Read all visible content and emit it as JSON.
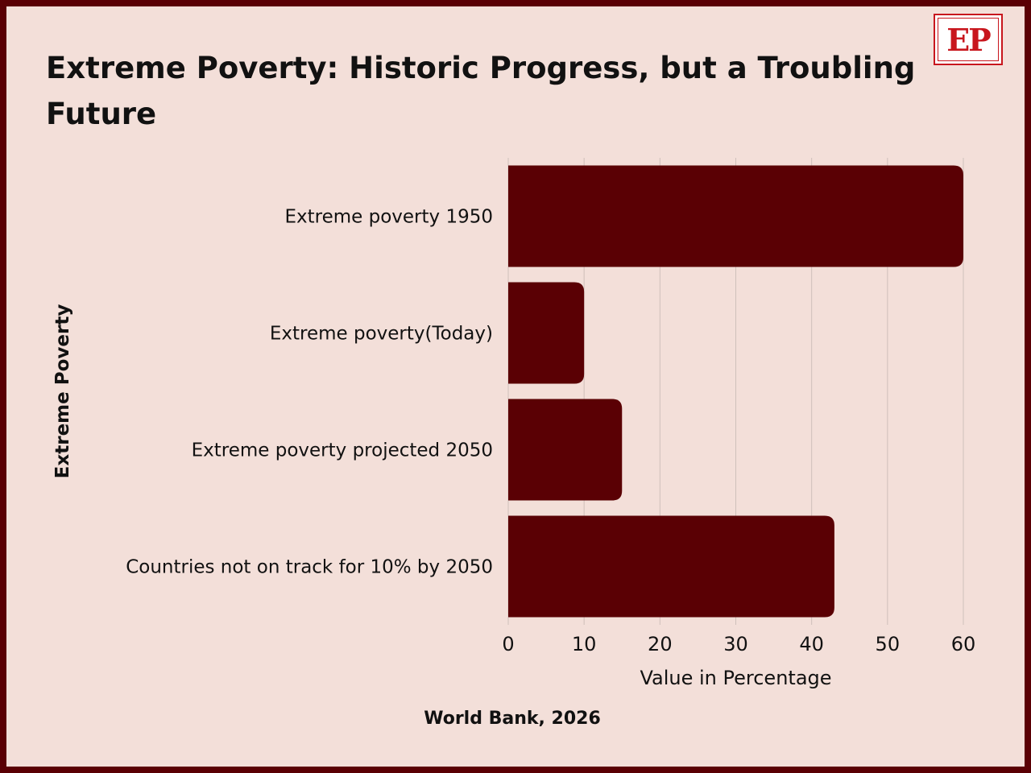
{
  "title": "Extreme Poverty: Historic Progress, but a Troubling Future",
  "logo_text": "EP",
  "source": "World Bank, 2026",
  "colors": {
    "bar": "#5a0004",
    "background": "#f3dfd9",
    "border": "#5a0004",
    "grid": "#cfc0bb",
    "logo": "#c8161d"
  },
  "chart_data": {
    "type": "bar",
    "orientation": "horizontal",
    "categories": [
      "Extreme poverty 1950",
      "Extreme poverty(Today)",
      "Extreme poverty projected 2050",
      "Countries not on track for 10% by 2050"
    ],
    "values": [
      60,
      10,
      15,
      43
    ],
    "xlabel": "Value in Percentage",
    "ylabel": "Extreme Poverty",
    "xlim": [
      0,
      60
    ],
    "xticks": [
      0,
      10,
      20,
      30,
      40,
      50,
      60
    ],
    "grid": "vertical"
  }
}
